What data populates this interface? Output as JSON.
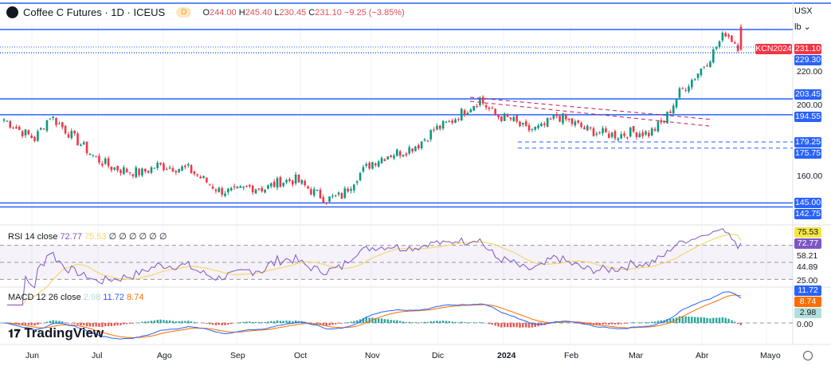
{
  "header": {
    "title": "Coffee C Futures · 1D · ICEUS",
    "interval_badge": "D",
    "open_label": "O",
    "open": "244.00",
    "high_label": "H",
    "high": "245.40",
    "low_label": "L",
    "low": "230.45",
    "close_label": "C",
    "close": "231.10",
    "change": "−9.25 (−3.85%)"
  },
  "selectors": {
    "currency": "USX",
    "unit": "lb"
  },
  "symbol_tag": "KCN2024",
  "price_labels": {
    "last": "231.10",
    "level1": "229.30",
    "level2": "203.45",
    "level3": "194.55",
    "level4": "179.25",
    "level5": "175.75",
    "level6": "145.00",
    "level7": "142.75"
  },
  "price_ticks": [
    "220.00",
    "200.00",
    "160.00"
  ],
  "rsi": {
    "label": "RSI 14 close",
    "value": "72.77",
    "ma": "75.53",
    "nulls": "∅ ∅ ∅ ∅ ∅ ∅",
    "ticks": [
      "58.21",
      "44.89",
      "25.00"
    ]
  },
  "macd": {
    "label": "MACD 12 26 close",
    "hist": "2.98",
    "macd": "11.72",
    "signal": "8.74",
    "zero": "0.00"
  },
  "time_axis": [
    "Jun",
    "Jul",
    "Ago",
    "Sep",
    "Oct",
    "Nov",
    "Dic",
    "2024",
    "Feb",
    "Mar",
    "Abr",
    "Mayo"
  ],
  "brand": "TradingView",
  "colors": {
    "up": "#089981",
    "down": "#f23645",
    "level": "#2962ff",
    "rsi": "#7e57c2",
    "rsi_ma": "#f5d76e",
    "macd": "#2962ff",
    "signal": "#ff6d00"
  },
  "chart_data": {
    "type": "candlestick",
    "approx_weekly_closes": [
      192,
      186,
      181,
      194,
      186,
      178,
      170,
      165,
      163,
      162,
      166,
      165,
      164,
      158,
      152,
      151,
      154,
      153,
      157,
      158,
      152,
      147,
      149,
      160,
      168,
      172,
      174,
      178,
      186,
      190,
      197,
      203,
      194,
      192,
      186,
      187,
      194,
      190,
      186,
      184,
      183,
      185,
      184,
      191,
      207,
      216,
      227,
      241,
      231.1
    ],
    "levels": [
      229.3,
      203.45,
      194.55,
      179.25,
      175.75,
      145.0,
      142.75
    ],
    "y_ticks": [
      220,
      200,
      160
    ]
  }
}
